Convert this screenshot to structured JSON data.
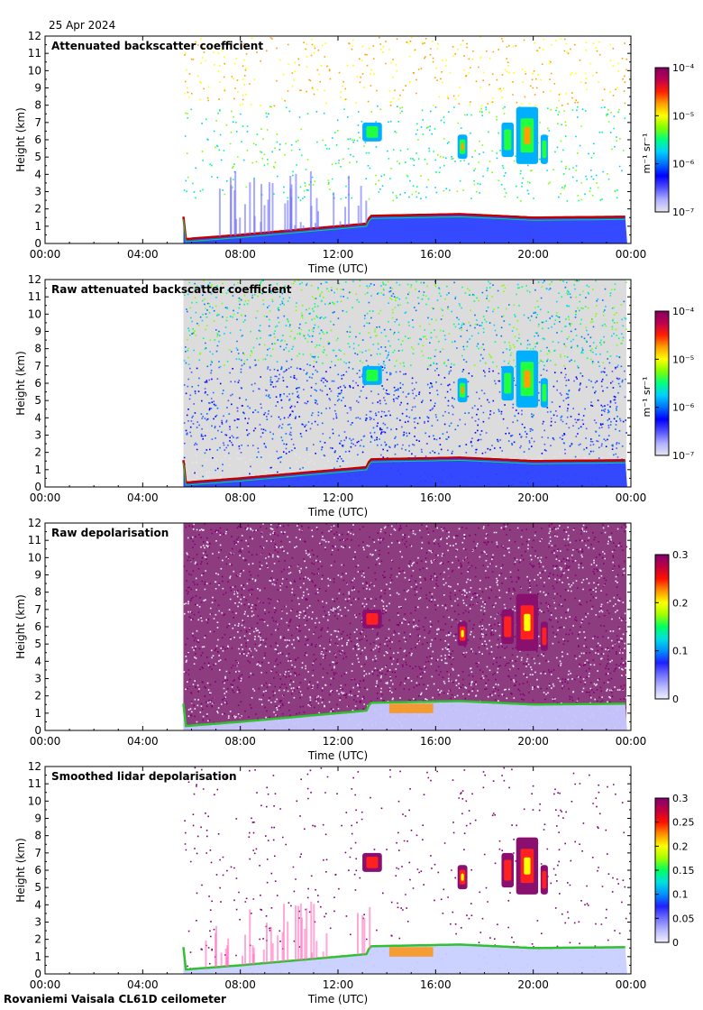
{
  "date": "25 Apr 2024",
  "footer": "Rovaniemi Vaisala CL61D ceilometer",
  "chart_data": [
    {
      "type": "heatmap",
      "title": "Attenuated backscatter coefficient",
      "xlabel": "Time (UTC)",
      "ylabel": "Height (km)",
      "x_ticks": [
        "00:00",
        "04:00",
        "08:00",
        "12:00",
        "16:00",
        "20:00",
        "00:00"
      ],
      "y_ticks": [
        0,
        1,
        2,
        3,
        4,
        5,
        6,
        7,
        8,
        9,
        10,
        11,
        12
      ],
      "ylim": [
        0,
        12
      ],
      "data_start": "05:40",
      "boundary_layer_km": [
        [
          5.7,
          0.25
        ],
        [
          8,
          0.5
        ],
        [
          12,
          1.0
        ],
        [
          13.2,
          1.15
        ],
        [
          13.3,
          1.6
        ],
        [
          17,
          1.7
        ],
        [
          20,
          1.5
        ],
        [
          24,
          1.55
        ]
      ],
      "cloud_patches": [
        {
          "t_start": 13.0,
          "t_end": 13.8,
          "h_low": 5.9,
          "h_high": 7.0
        },
        {
          "t_start": 16.9,
          "t_end": 17.3,
          "h_low": 4.9,
          "h_high": 6.3
        },
        {
          "t_start": 18.7,
          "t_end": 19.2,
          "h_low": 5.0,
          "h_high": 7.0
        },
        {
          "t_start": 19.3,
          "t_end": 20.2,
          "h_low": 4.6,
          "h_high": 7.9
        },
        {
          "t_start": 20.3,
          "t_end": 20.6,
          "h_low": 4.6,
          "h_high": 6.3
        }
      ],
      "colorbar": {
        "scale": "log",
        "ticks": [
          "10⁻⁴",
          "10⁻⁵",
          "10⁻⁶",
          "10⁻⁷"
        ],
        "range": [
          1e-07,
          0.0001
        ],
        "label": "m⁻¹ sr⁻¹"
      }
    },
    {
      "type": "heatmap",
      "title": "Raw attenuated backscatter coefficient",
      "xlabel": "Time (UTC)",
      "ylabel": "Height (km)",
      "x_ticks": [
        "00:00",
        "04:00",
        "08:00",
        "12:00",
        "16:00",
        "20:00",
        "00:00"
      ],
      "y_ticks": [
        0,
        1,
        2,
        3,
        4,
        5,
        6,
        7,
        8,
        9,
        10,
        11,
        12
      ],
      "ylim": [
        0,
        12
      ],
      "data_start": "05:40",
      "colorbar": {
        "scale": "log",
        "ticks": [
          "10⁻⁴",
          "10⁻⁵",
          "10⁻⁶",
          "10⁻⁷"
        ],
        "range": [
          1e-07,
          0.0001
        ],
        "label": "m⁻¹ sr⁻¹"
      }
    },
    {
      "type": "heatmap",
      "title": "Raw depolarisation",
      "xlabel": "Time (UTC)",
      "ylabel": "Height (km)",
      "x_ticks": [
        "00:00",
        "04:00",
        "08:00",
        "12:00",
        "16:00",
        "20:00",
        "00:00"
      ],
      "y_ticks": [
        0,
        1,
        2,
        3,
        4,
        5,
        6,
        7,
        8,
        9,
        10,
        11,
        12
      ],
      "ylim": [
        0,
        12
      ],
      "data_start": "05:40",
      "colorbar": {
        "scale": "linear",
        "ticks": [
          "0.3",
          "0.2",
          "0.1",
          "0"
        ],
        "range": [
          0,
          0.3
        ],
        "label": ""
      }
    },
    {
      "type": "heatmap",
      "title": "Smoothed lidar depolarisation",
      "xlabel": "Time (UTC)",
      "ylabel": "Height (km)",
      "x_ticks": [
        "00:00",
        "04:00",
        "08:00",
        "12:00",
        "16:00",
        "20:00",
        "00:00"
      ],
      "y_ticks": [
        0,
        1,
        2,
        3,
        4,
        5,
        6,
        7,
        8,
        9,
        10,
        11,
        12
      ],
      "ylim": [
        0,
        12
      ],
      "data_start": "05:40",
      "colorbar": {
        "scale": "linear",
        "ticks": [
          "0.3",
          "0.25",
          "0.2",
          "0.15",
          "0.1",
          "0.05",
          "0"
        ],
        "range": [
          0,
          0.3
        ],
        "label": ""
      }
    }
  ]
}
